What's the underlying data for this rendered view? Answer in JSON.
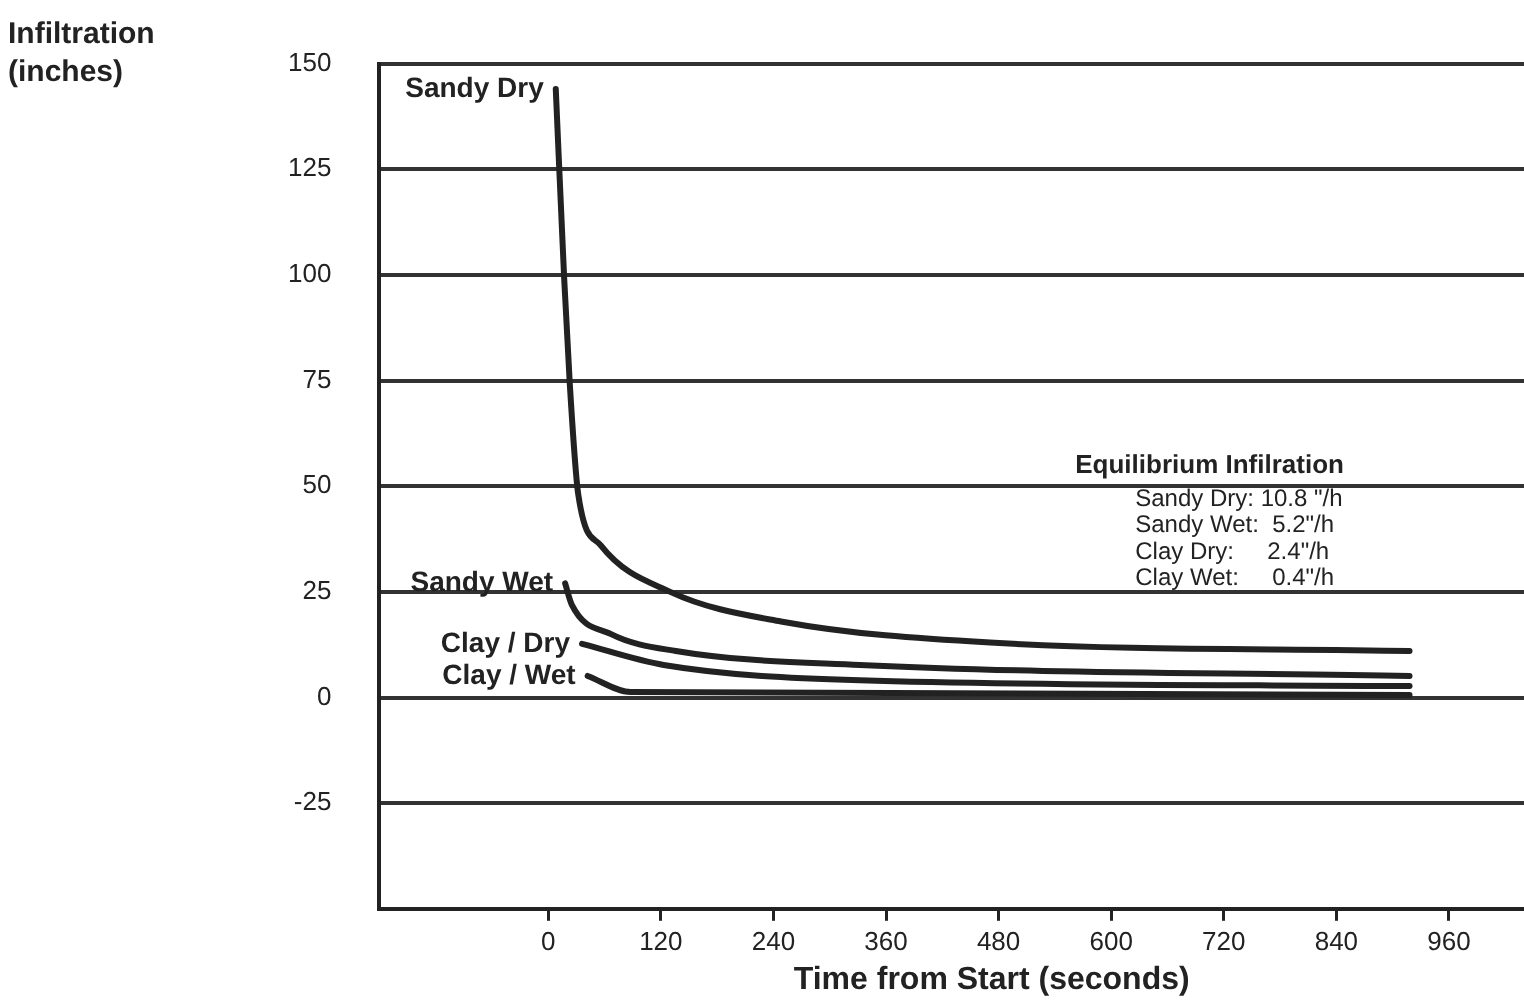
{
  "chart_data": {
    "type": "line",
    "ylabel": "Infiltration (inches)",
    "xlabel": "Time from Start (seconds)",
    "annotations": [
      "Equilibrium Infilration",
      "Sandy Dry: 10.8 \"/h",
      "Sandy Wet:  5.2\"/h",
      "Clay Dry:     2.4\"/h",
      "Clay Wet:     0.4\"/h"
    ],
    "series": [
      {
        "name": "Sandy Dry",
        "color": "#222222",
        "x": [
          8,
          17,
          23,
          32,
          56,
          130,
          248,
          471,
          918
        ],
        "values": [
          144,
          99,
          74,
          48,
          36,
          25,
          18,
          13,
          11
        ]
      },
      {
        "name": "Sandy Wet",
        "color": "#222222",
        "x": [
          18,
          25,
          67,
          136,
          332,
          918
        ],
        "values": [
          27,
          22,
          15,
          11,
          7.7,
          5.1
        ]
      },
      {
        "name": "Clay / Dry",
        "color": "#222222",
        "x": [
          36,
          123,
          332,
          918
        ],
        "values": [
          12.7,
          7.7,
          4.1,
          2.7
        ]
      },
      {
        "name": "Clay / Wet",
        "color": "#222222",
        "x": [
          42,
          88,
          918
        ],
        "values": [
          5.1,
          1.3,
          0.6
        ]
      }
    ],
    "xlim": [
      -180,
      1040
    ],
    "xticks": [
      0,
      120,
      240,
      360,
      480,
      600,
      720,
      840,
      960
    ],
    "ylim": [
      -50,
      150
    ],
    "yticks": [
      -25,
      0,
      25,
      50,
      75,
      100,
      125,
      150
    ],
    "grid": "y",
    "legend": false,
    "marker": "none",
    "line_style": "solid"
  }
}
